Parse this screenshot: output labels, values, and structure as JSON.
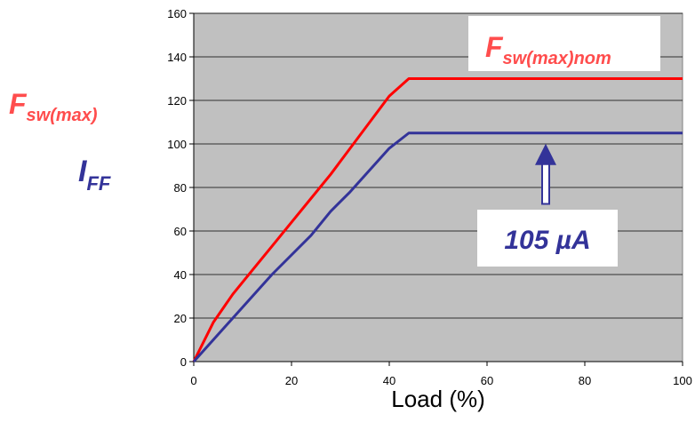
{
  "chart_data": {
    "type": "line",
    "xlabel": "Load (%)",
    "xlim": [
      0,
      100
    ],
    "ylim": [
      0,
      160
    ],
    "xticks": [
      0,
      20,
      40,
      60,
      80,
      100
    ],
    "yticks": [
      0,
      20,
      40,
      60,
      80,
      100,
      120,
      140,
      160
    ],
    "grid": true,
    "background_color": "#c0c0c0",
    "series": [
      {
        "name_main": "F",
        "name_sub": "sw(max)nom",
        "color": "#ff0000",
        "x": [
          0,
          4,
          8,
          12,
          16,
          20,
          24,
          28,
          32,
          36,
          40,
          44,
          100
        ],
        "y": [
          0,
          18,
          31,
          42,
          53,
          64,
          75,
          86,
          98,
          110,
          122,
          130,
          130
        ]
      },
      {
        "name_main": "I",
        "name_sub": "FF",
        "color": "#333399",
        "x": [
          0,
          8,
          16,
          24,
          28,
          32,
          36,
          40,
          44,
          100
        ],
        "y": [
          0,
          20,
          40,
          58,
          69,
          78,
          88,
          98,
          105,
          105
        ]
      }
    ],
    "annotations": [
      {
        "text": "105 µA",
        "color": "#333399",
        "arrow_to": {
          "x": 72,
          "y": 105
        },
        "arrow_from": {
          "x": 72,
          "y": 70
        }
      }
    ],
    "axis_labels_left": [
      {
        "main": "F",
        "sub": "sw(max)",
        "color": "#ff4d4d"
      },
      {
        "main": "I",
        "sub": "FF",
        "color": "#333399"
      }
    ]
  }
}
